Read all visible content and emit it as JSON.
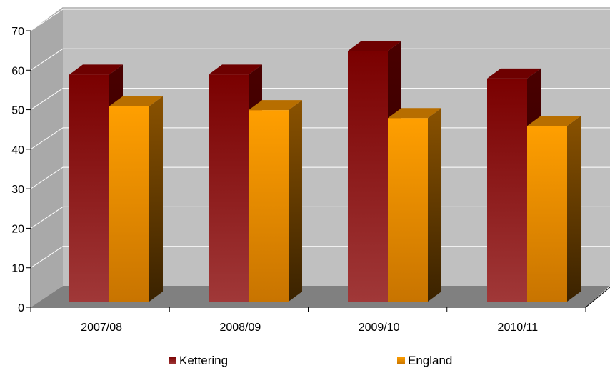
{
  "chart_data": {
    "type": "bar",
    "title": "",
    "xlabel": "",
    "ylabel": "",
    "categories": [
      "2007/08",
      "2008/09",
      "2009/10",
      "2010/11"
    ],
    "series": [
      {
        "name": "Kettering",
        "values": [
          56,
          56,
          62,
          55
        ],
        "color": "#8B1A1A"
      },
      {
        "name": "England",
        "values": [
          48,
          47,
          45,
          43
        ],
        "color": "#FF9900"
      }
    ],
    "ylim": [
      0,
      70
    ],
    "yticks": [
      0,
      10,
      20,
      30,
      40,
      50,
      60,
      70
    ],
    "grid": true,
    "legend_position": "bottom",
    "three_d": true
  }
}
